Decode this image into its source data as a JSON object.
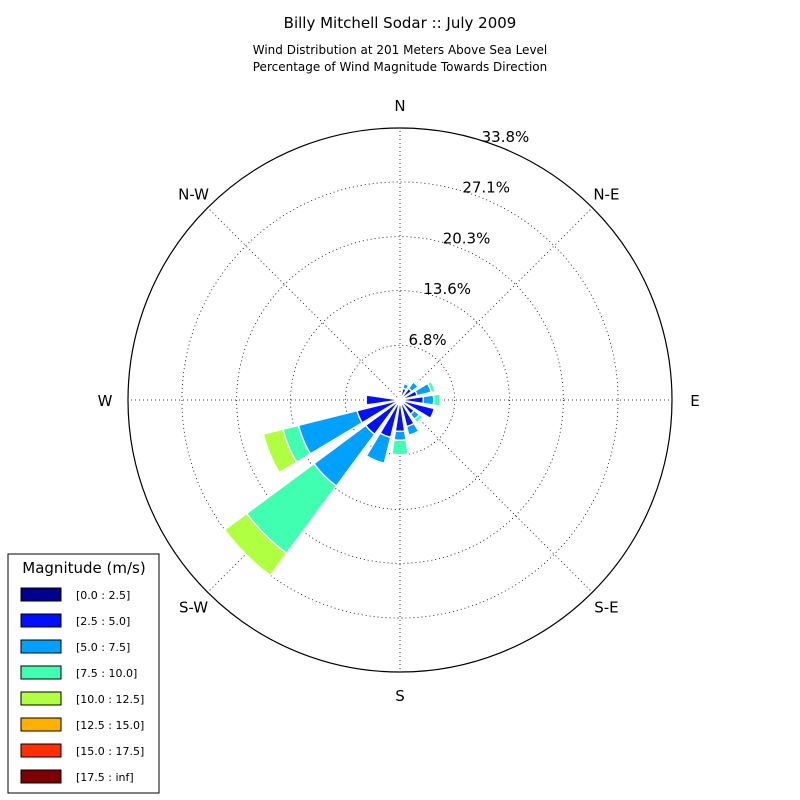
{
  "chart_data": {
    "type": "windrose",
    "title": "Billy Mitchell Sodar :: July 2009",
    "subtitle_lines": [
      "Wind Distribution at 201 Meters Above Sea Level",
      "Percentage of Wind Magnitude Towards Direction"
    ],
    "direction_labels": [
      "N",
      "N-E",
      "E",
      "S-E",
      "S",
      "S-W",
      "W",
      "N-W"
    ],
    "ring_labels": [
      "6.8%",
      "13.6%",
      "20.3%",
      "27.1%",
      "33.8%"
    ],
    "r_max": 33.8,
    "ring_values": [
      6.8,
      13.6,
      20.3,
      27.1,
      33.8
    ],
    "legend_title": "Magnitude (m/s)",
    "legend": [
      {
        "label": "[0.0 : 2.5]",
        "color": "#00008f"
      },
      {
        "label": "[2.5 : 5.0]",
        "color": "#0010ff"
      },
      {
        "label": "[5.0 : 7.5]",
        "color": "#00a0ff"
      },
      {
        "label": "[7.5 : 10.0]",
        "color": "#40ffb0"
      },
      {
        "label": "[10.0 : 12.5]",
        "color": "#b0ff40"
      },
      {
        "label": "[12.5 : 15.0]",
        "color": "#ffb000"
      },
      {
        "label": "[15.0 : 17.5]",
        "color": "#ff3000"
      },
      {
        "label": "[17.5 : inf]",
        "color": "#800000"
      }
    ],
    "directions_deg": [
      0,
      22.5,
      45,
      67.5,
      90,
      112.5,
      135,
      157.5,
      180,
      202.5,
      225,
      247.5,
      270,
      292.5,
      315,
      337.5
    ],
    "cumulative_percent": [
      [
        0.0,
        0.5,
        0.5,
        0.5,
        0.5,
        0.5,
        0.5,
        0.5
      ],
      [
        0.4,
        1.5,
        2.1,
        2.3,
        2.3,
        2.3,
        2.3,
        2.3
      ],
      [
        0.4,
        1.8,
        2.8,
        3.0,
        3.0,
        3.0,
        3.0,
        3.0
      ],
      [
        0.4,
        2.2,
        4.0,
        4.5,
        4.5,
        4.5,
        4.5,
        4.5
      ],
      [
        0.5,
        2.9,
        4.2,
        5.0,
        5.0,
        5.0,
        5.0,
        5.0
      ],
      [
        0.5,
        4.4,
        4.4,
        4.4,
        4.4,
        4.4,
        4.4,
        4.4
      ],
      [
        0.3,
        2.2,
        3.0,
        3.5,
        3.5,
        3.5,
        3.5,
        3.5
      ],
      [
        0.3,
        3.4,
        4.5,
        4.5,
        4.5,
        4.5,
        4.5,
        4.5
      ],
      [
        0.3,
        3.9,
        5.0,
        6.8,
        6.8,
        6.8,
        6.8,
        6.8
      ],
      [
        0.3,
        4.8,
        8.1,
        8.1,
        8.1,
        8.1,
        8.1,
        8.1
      ],
      [
        0.3,
        5.3,
        13.3,
        23.7,
        27.1,
        27.1,
        27.1,
        27.1
      ],
      [
        0.4,
        5.5,
        13.0,
        15.0,
        17.5,
        17.5,
        17.5,
        17.5
      ],
      [
        0.4,
        4.2,
        4.2,
        4.2,
        4.2,
        4.2,
        4.2,
        4.2
      ],
      [
        0.3,
        0.3,
        0.3,
        0.3,
        0.3,
        0.3,
        0.3,
        0.3
      ],
      [
        0.3,
        0.3,
        0.3,
        0.3,
        0.3,
        0.3,
        0.3,
        0.3
      ],
      [
        0.3,
        0.5,
        0.5,
        0.5,
        0.5,
        0.5,
        0.5,
        0.5
      ]
    ],
    "grid": true
  }
}
